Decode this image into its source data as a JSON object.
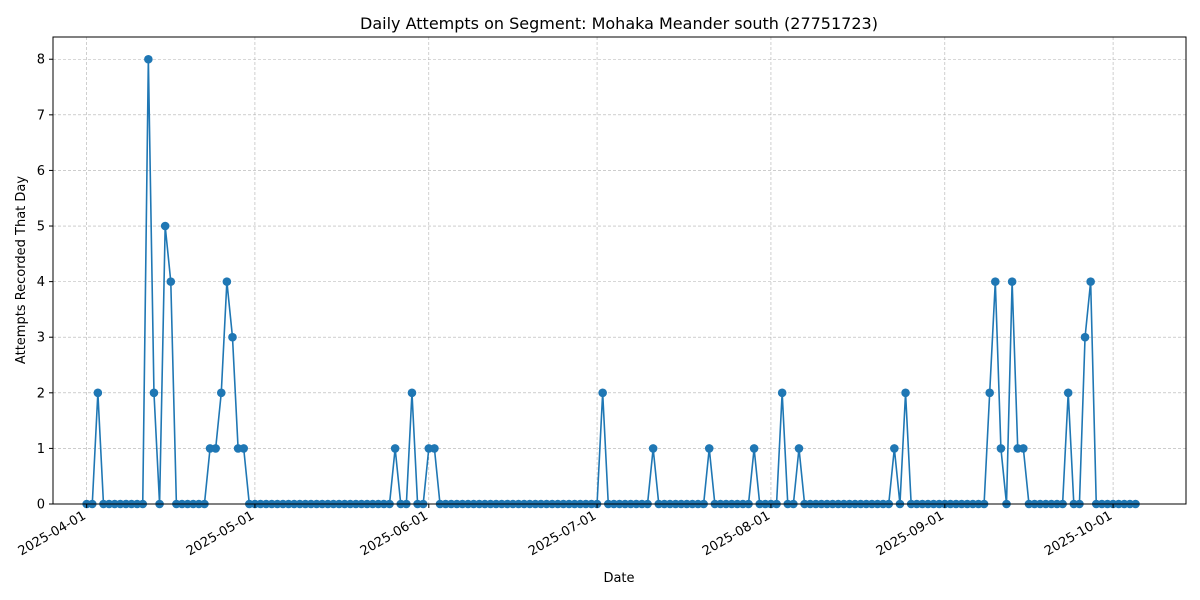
{
  "chart_data": {
    "type": "line",
    "title": "Daily Attempts on Segment: Mohaka Meander south (27751723)",
    "xlabel": "Date",
    "ylabel": "Attempts Recorded That Day",
    "xlim": [
      "2025-03-26",
      "2025-10-14"
    ],
    "ylim": [
      0,
      8.4
    ],
    "x_ticks": [
      "2025-04-01",
      "2025-05-01",
      "2025-06-01",
      "2025-07-01",
      "2025-08-01",
      "2025-09-01",
      "2025-10-01"
    ],
    "y_ticks": [
      0,
      1,
      2,
      3,
      4,
      5,
      6,
      7,
      8
    ],
    "grid": true,
    "line_color": "#1f77b4",
    "series": [
      {
        "start_date": "2025-04-01",
        "values": [
          0,
          0,
          2,
          0,
          0,
          0,
          0,
          0,
          0,
          0,
          0,
          8,
          2,
          0,
          5,
          4,
          0,
          0,
          0,
          0,
          0,
          0,
          1,
          1,
          2,
          4,
          3,
          1,
          1,
          0,
          0,
          0,
          0,
          0,
          0,
          0,
          0,
          0,
          0,
          0,
          0,
          0,
          0,
          0,
          0,
          0,
          0,
          0,
          0,
          0,
          0,
          0,
          0,
          0,
          0,
          1,
          0,
          0,
          2,
          0,
          0,
          1,
          1,
          0,
          0,
          0,
          0,
          0,
          0,
          0,
          0,
          0,
          0,
          0,
          0,
          0,
          0,
          0,
          0,
          0,
          0,
          0,
          0,
          0,
          0,
          0,
          0,
          0,
          0,
          0,
          0,
          0,
          2,
          0,
          0,
          0,
          0,
          0,
          0,
          0,
          0,
          1,
          0,
          0,
          0,
          0,
          0,
          0,
          0,
          0,
          0,
          1,
          0,
          0,
          0,
          0,
          0,
          0,
          0,
          1,
          0,
          0,
          0,
          0,
          2,
          0,
          0,
          1,
          0,
          0,
          0,
          0,
          0,
          0,
          0,
          0,
          0,
          0,
          0,
          0,
          0,
          0,
          0,
          0,
          1,
          0,
          2,
          0,
          0,
          0,
          0,
          0,
          0,
          0,
          0,
          0,
          0,
          0,
          0,
          0,
          0,
          2,
          4,
          1,
          0,
          4,
          1,
          1,
          0,
          0,
          0,
          0,
          0,
          0,
          0,
          2,
          0,
          0,
          3,
          4,
          0,
          0,
          0,
          0,
          0,
          0,
          0,
          0
        ]
      }
    ]
  }
}
